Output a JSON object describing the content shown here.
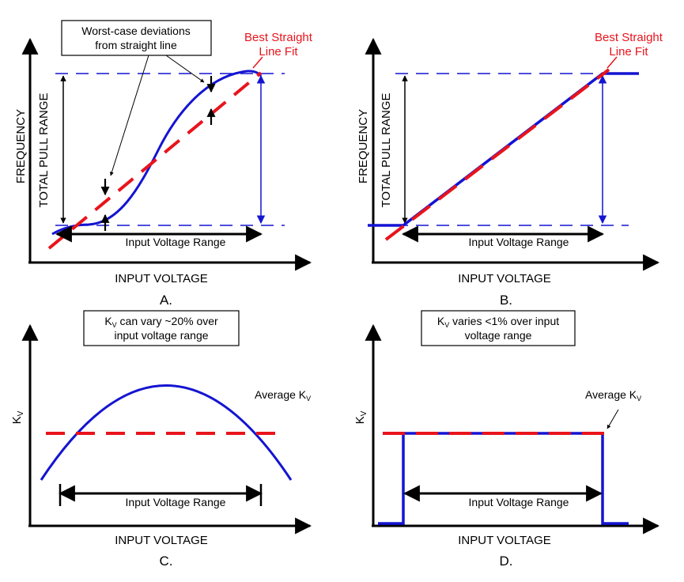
{
  "panels": {
    "a": {
      "letter": "A.",
      "x_axis_label": "INPUT VOLTAGE",
      "y_axis_label": "FREQUENCY",
      "range_label": "TOTAL PULL RANGE",
      "input_range_label": "Input Voltage Range",
      "callout_line1": "Worst-case deviations",
      "callout_line2": "from straight line",
      "fit_line1": "Best Straight",
      "fit_line2": "Line Fit"
    },
    "b": {
      "letter": "B.",
      "x_axis_label": "INPUT VOLTAGE",
      "y_axis_label": "FREQUENCY",
      "range_label": "TOTAL PULL RANGE",
      "input_range_label": "Input Voltage Range",
      "fit_line1": "Best Straight",
      "fit_line2": "Line Fit"
    },
    "c": {
      "letter": "C.",
      "x_axis_label": "INPUT VOLTAGE",
      "y_axis_label": "K",
      "y_axis_sub": "V",
      "note_k": "K",
      "note_sub": "V",
      "note_line1": " can vary ~20% over",
      "note_line2": "input voltage range",
      "avg_label": "Average K",
      "avg_sub": "V",
      "input_range_label": "Input Voltage Range"
    },
    "d": {
      "letter": "D.",
      "x_axis_label": "INPUT VOLTAGE",
      "y_axis_label": "K",
      "y_axis_sub": "V",
      "note_k": "K",
      "note_sub": "V",
      "note_line1": " varies <1% over input",
      "note_line2": "voltage range",
      "avg_label": "Average K",
      "avg_sub": "V",
      "input_range_label": "Input Voltage Range"
    }
  },
  "colors": {
    "curve": "#1414d2",
    "fit": "#e8141c",
    "axis": "#000000"
  }
}
